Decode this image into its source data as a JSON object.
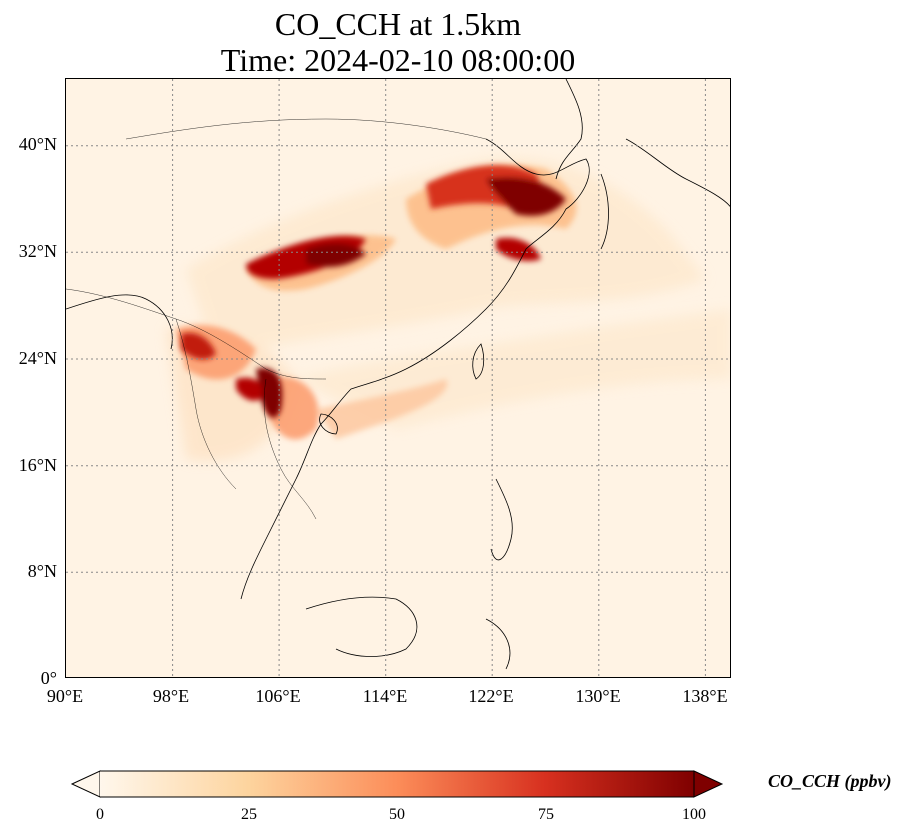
{
  "title": "CO_CCH at 1.5km",
  "subtitle": "Time: 2024-02-10 08:00:00",
  "map": {
    "lon_ticks": [
      "90°E",
      "98°E",
      "106°E",
      "114°E",
      "122°E",
      "130°E",
      "138°E"
    ],
    "lat_ticks": [
      "40°N",
      "32°N",
      "24°N",
      "16°N",
      "8°N",
      "0°"
    ],
    "lon_range": [
      90,
      140
    ],
    "lat_range": [
      0,
      45
    ],
    "gridlines": true,
    "colormap": "OrRd"
  },
  "colorbar": {
    "label": "CO_CCH (ppbv)",
    "ticks": [
      "0",
      "25",
      "50",
      "75",
      "100"
    ],
    "range": [
      0,
      100
    ],
    "extend": "both",
    "colors": [
      "#fff7ec",
      "#fdd49e",
      "#fc8d59",
      "#d7301f",
      "#7f0000"
    ]
  }
}
